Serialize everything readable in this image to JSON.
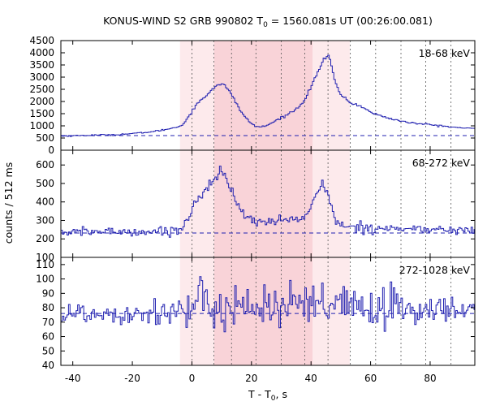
{
  "chart_data": {
    "type": "line",
    "title_main": "KONUS-WIND S2 GRB 990802 T",
    "title_sub": "0",
    "title_tail": " = 1560.081s UT (00:26:00.081)",
    "ylabel": "counts / 512 ms",
    "xlabel_main": "T - T",
    "xlabel_sub": "0",
    "xlabel_tail": ", s",
    "xlim": [
      -44,
      95
    ],
    "xticks": [
      -40,
      -20,
      0,
      20,
      40,
      60,
      80
    ],
    "colors": {
      "series": "#2020b0",
      "bg_dash": "#2020b0",
      "band_outer": "#fdeaec",
      "band_inner": "#f9d3d8",
      "vline": "#555555",
      "axis": "#000000"
    },
    "band_outer": [
      -4,
      53
    ],
    "band_inner": [
      7.5,
      40.5
    ],
    "vlines": [
      0,
      7.4,
      13.3,
      21.5,
      30,
      37.9,
      45.7,
      53.2,
      61.7,
      70.2,
      78.5,
      87
    ],
    "panels": [
      {
        "label": "18-68 keV",
        "ylim": [
          0,
          4500
        ],
        "yticks": [
          0,
          500,
          1000,
          1500,
          2000,
          2500,
          3000,
          3500,
          4000,
          4500
        ],
        "background": 600,
        "profile": [
          [
            -44,
            580
          ],
          [
            -35,
            610
          ],
          [
            -25,
            640
          ],
          [
            -18,
            700
          ],
          [
            -12,
            780
          ],
          [
            -8,
            870
          ],
          [
            -5,
            950
          ],
          [
            -3,
            1050
          ],
          [
            -1,
            1400
          ],
          [
            1,
            1800
          ],
          [
            3,
            2050
          ],
          [
            5,
            2250
          ],
          [
            7,
            2550
          ],
          [
            9,
            2700
          ],
          [
            10,
            2750
          ],
          [
            11,
            2650
          ],
          [
            13,
            2350
          ],
          [
            15,
            1900
          ],
          [
            17,
            1500
          ],
          [
            19,
            1200
          ],
          [
            21,
            1000
          ],
          [
            23,
            950
          ],
          [
            25,
            1000
          ],
          [
            28,
            1200
          ],
          [
            31,
            1400
          ],
          [
            34,
            1600
          ],
          [
            36,
            1800
          ],
          [
            38,
            2100
          ],
          [
            40,
            2600
          ],
          [
            42,
            3150
          ],
          [
            44,
            3650
          ],
          [
            45,
            3800
          ],
          [
            46,
            3900
          ],
          [
            47,
            3400
          ],
          [
            48,
            2800
          ],
          [
            50,
            2300
          ],
          [
            53,
            1950
          ],
          [
            57,
            1800
          ],
          [
            60,
            1550
          ],
          [
            65,
            1350
          ],
          [
            70,
            1200
          ],
          [
            75,
            1100
          ],
          [
            80,
            1050
          ],
          [
            85,
            980
          ],
          [
            90,
            920
          ],
          [
            95,
            880
          ]
        ]
      },
      {
        "label": "68-272 keV",
        "ylim": [
          100,
          680
        ],
        "yticks": [
          100,
          200,
          300,
          400,
          500,
          600
        ],
        "background": 232,
        "profile": [
          [
            -44,
            235
          ],
          [
            -30,
            240
          ],
          [
            -15,
            238
          ],
          [
            -6,
            245
          ],
          [
            -3,
            260
          ],
          [
            -1,
            320
          ],
          [
            1,
            400
          ],
          [
            3,
            440
          ],
          [
            5,
            470
          ],
          [
            7,
            520
          ],
          [
            8,
            560
          ],
          [
            9,
            570
          ],
          [
            10,
            560
          ],
          [
            11,
            540
          ],
          [
            12,
            500
          ],
          [
            14,
            430
          ],
          [
            16,
            360
          ],
          [
            18,
            320
          ],
          [
            20,
            300
          ],
          [
            24,
            295
          ],
          [
            28,
            300
          ],
          [
            32,
            305
          ],
          [
            34,
            300
          ],
          [
            36,
            310
          ],
          [
            38,
            330
          ],
          [
            40,
            360
          ],
          [
            41,
            400
          ],
          [
            42,
            450
          ],
          [
            43,
            470
          ],
          [
            44,
            500
          ],
          [
            45,
            480
          ],
          [
            46,
            430
          ],
          [
            47,
            370
          ],
          [
            48,
            300
          ],
          [
            50,
            270
          ],
          [
            55,
            265
          ],
          [
            60,
            262
          ],
          [
            70,
            255
          ],
          [
            80,
            250
          ],
          [
            90,
            248
          ],
          [
            95,
            245
          ]
        ]
      },
      {
        "label": "272-1028 keV",
        "ylim": [
          40,
          115
        ],
        "yticks": [
          40,
          50,
          60,
          70,
          80,
          90,
          100,
          110
        ],
        "background": 76,
        "profile": [
          [
            -44,
            76
          ],
          [
            -30,
            76
          ],
          [
            -15,
            77
          ],
          [
            -4,
            78
          ],
          [
            0,
            79
          ],
          [
            10,
            82
          ],
          [
            15,
            82
          ],
          [
            25,
            81
          ],
          [
            35,
            80
          ],
          [
            40,
            80
          ],
          [
            44,
            82
          ],
          [
            46,
            80
          ],
          [
            55,
            80
          ],
          [
            70,
            79
          ],
          [
            80,
            79
          ],
          [
            95,
            78
          ]
        ]
      }
    ]
  }
}
